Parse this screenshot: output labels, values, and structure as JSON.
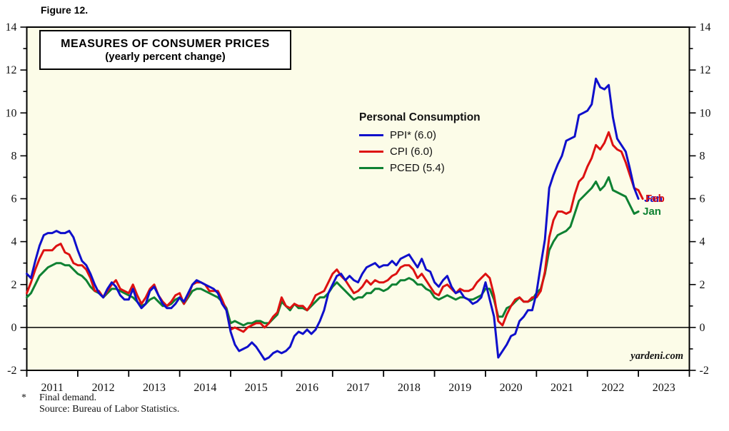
{
  "figure_label": "Figure 12.",
  "title": {
    "line1": "MEASURES OF CONSUMER PRICES",
    "line2": "(yearly percent change)"
  },
  "legend": {
    "title": "Personal Consumption",
    "items": [
      {
        "label": "PPI* (6.0)"
      },
      {
        "label": "CPI (6.0)"
      },
      {
        "label": "PCED (5.4)"
      }
    ]
  },
  "watermark": "yardeni.com",
  "footnote": {
    "star": "*",
    "line1": "Final demand.",
    "line2": "Source: Bureau of Labor Statistics."
  },
  "colors": {
    "plot_background": "#fcfce8",
    "axis": "#000000",
    "frame": "#000000"
  },
  "chart_data": {
    "type": "line",
    "title": "MEASURES OF CONSUMER PRICES (yearly percent change)",
    "xlabel": "",
    "ylabel": "yearly percent change",
    "ylim": [
      -2,
      14
    ],
    "y_major_ticks": [
      -2,
      0,
      2,
      4,
      6,
      8,
      10,
      12,
      14
    ],
    "y_minor_step": 1,
    "xlim": [
      2011,
      2024
    ],
    "x_year_labels": [
      "2011",
      "2012",
      "2013",
      "2014",
      "2015",
      "2016",
      "2017",
      "2018",
      "2019",
      "2020",
      "2021",
      "2022",
      "2023"
    ],
    "grid": false,
    "zero_line": true,
    "legend_position": "inside top-center",
    "x_start": 2011.0,
    "x_step_years": 0.0833333,
    "series": [
      {
        "name": "PPI* (6.0)",
        "color": "#0f0fcb",
        "end_label": "Jan",
        "end_value": 6.0,
        "values": [
          2.5,
          2.3,
          3.1,
          3.8,
          4.3,
          4.4,
          4.4,
          4.5,
          4.4,
          4.4,
          4.5,
          4.2,
          3.6,
          3.1,
          2.9,
          2.5,
          2.0,
          1.6,
          1.4,
          1.8,
          2.1,
          1.9,
          1.5,
          1.3,
          1.3,
          1.8,
          1.2,
          0.9,
          1.1,
          1.7,
          1.9,
          1.5,
          1.1,
          0.9,
          0.9,
          1.1,
          1.4,
          1.2,
          1.6,
          2.0,
          2.2,
          2.1,
          2.0,
          1.9,
          1.8,
          1.6,
          1.1,
          0.8,
          -0.2,
          -0.8,
          -1.1,
          -1.0,
          -0.9,
          -0.7,
          -0.9,
          -1.2,
          -1.5,
          -1.4,
          -1.2,
          -1.1,
          -1.2,
          -1.1,
          -0.9,
          -0.4,
          -0.2,
          -0.3,
          -0.1,
          -0.3,
          -0.1,
          0.3,
          0.8,
          1.6,
          2.0,
          2.4,
          2.5,
          2.2,
          2.4,
          2.2,
          2.1,
          2.5,
          2.8,
          2.9,
          3.0,
          2.8,
          2.9,
          2.9,
          3.1,
          2.9,
          3.2,
          3.3,
          3.4,
          3.1,
          2.8,
          3.2,
          2.7,
          2.6,
          2.1,
          1.9,
          2.2,
          2.4,
          1.9,
          1.6,
          1.7,
          1.4,
          1.3,
          1.1,
          1.2,
          1.4,
          2.1,
          1.3,
          0.5,
          -1.4,
          -1.1,
          -0.8,
          -0.4,
          -0.3,
          0.3,
          0.5,
          0.8,
          0.8,
          1.6,
          2.9,
          4.1,
          6.5,
          7.1,
          7.6,
          8.0,
          8.7,
          8.8,
          8.9,
          9.9,
          10.0,
          10.1,
          10.4,
          11.6,
          11.2,
          11.1,
          11.3,
          9.8,
          8.8,
          8.5,
          8.2,
          7.4,
          6.5,
          6.0
        ]
      },
      {
        "name": "CPI (6.0)",
        "color": "#dd1111",
        "end_label": "Feb",
        "end_value": 6.0,
        "values": [
          1.6,
          2.1,
          2.7,
          3.2,
          3.6,
          3.6,
          3.6,
          3.8,
          3.9,
          3.5,
          3.4,
          3.0,
          2.9,
          2.9,
          2.7,
          2.3,
          1.7,
          1.7,
          1.4,
          1.7,
          2.0,
          2.2,
          1.8,
          1.7,
          1.6,
          2.0,
          1.5,
          1.1,
          1.4,
          1.8,
          2.0,
          1.5,
          1.2,
          1.0,
          1.2,
          1.5,
          1.6,
          1.1,
          1.5,
          2.0,
          2.1,
          2.1,
          2.0,
          1.7,
          1.7,
          1.7,
          1.3,
          0.8,
          -0.1,
          0.0,
          -0.1,
          -0.2,
          0.0,
          0.1,
          0.2,
          0.2,
          0.0,
          0.2,
          0.5,
          0.7,
          1.4,
          1.0,
          0.9,
          1.1,
          1.0,
          1.0,
          0.8,
          1.1,
          1.5,
          1.6,
          1.7,
          2.1,
          2.5,
          2.7,
          2.4,
          2.2,
          1.9,
          1.6,
          1.7,
          1.9,
          2.2,
          2.0,
          2.2,
          2.1,
          2.1,
          2.2,
          2.4,
          2.5,
          2.8,
          2.9,
          2.9,
          2.7,
          2.3,
          2.5,
          2.2,
          1.9,
          1.6,
          1.5,
          1.9,
          2.0,
          1.8,
          1.6,
          1.8,
          1.7,
          1.7,
          1.8,
          2.1,
          2.3,
          2.5,
          2.3,
          1.5,
          0.3,
          0.1,
          0.6,
          1.0,
          1.3,
          1.4,
          1.2,
          1.2,
          1.4,
          1.4,
          1.7,
          2.6,
          4.2,
          5.0,
          5.4,
          5.4,
          5.3,
          5.4,
          6.2,
          6.8,
          7.0,
          7.5,
          7.9,
          8.5,
          8.3,
          8.6,
          9.1,
          8.5,
          8.3,
          8.2,
          7.7,
          7.1,
          6.5,
          6.4,
          6.0
        ]
      },
      {
        "name": "PCED (5.4)",
        "color": "#0e8132",
        "end_label": "Jan",
        "end_value": 5.4,
        "values": [
          1.4,
          1.6,
          2.0,
          2.4,
          2.6,
          2.8,
          2.9,
          3.0,
          3.0,
          2.9,
          2.9,
          2.7,
          2.5,
          2.4,
          2.2,
          1.9,
          1.7,
          1.6,
          1.4,
          1.6,
          1.8,
          1.8,
          1.7,
          1.6,
          1.5,
          1.4,
          1.2,
          1.0,
          1.1,
          1.3,
          1.4,
          1.2,
          1.0,
          1.0,
          1.1,
          1.3,
          1.4,
          1.1,
          1.4,
          1.7,
          1.8,
          1.8,
          1.7,
          1.6,
          1.5,
          1.4,
          1.2,
          0.9,
          0.2,
          0.3,
          0.2,
          0.1,
          0.2,
          0.2,
          0.3,
          0.3,
          0.2,
          0.2,
          0.4,
          0.6,
          1.2,
          1.0,
          0.8,
          1.1,
          0.9,
          0.9,
          0.8,
          1.0,
          1.2,
          1.4,
          1.4,
          1.6,
          1.9,
          2.1,
          1.9,
          1.7,
          1.5,
          1.3,
          1.4,
          1.4,
          1.6,
          1.6,
          1.8,
          1.8,
          1.7,
          1.8,
          2.0,
          2.0,
          2.2,
          2.2,
          2.3,
          2.2,
          2.0,
          2.0,
          1.8,
          1.7,
          1.4,
          1.3,
          1.4,
          1.5,
          1.4,
          1.3,
          1.4,
          1.4,
          1.3,
          1.3,
          1.4,
          1.5,
          1.8,
          1.8,
          1.3,
          0.5,
          0.5,
          0.9,
          1.0,
          1.2,
          1.4,
          1.2,
          1.2,
          1.3,
          1.6,
          1.8,
          2.5,
          3.6,
          4.0,
          4.3,
          4.4,
          4.5,
          4.7,
          5.3,
          5.9,
          6.1,
          6.3,
          6.5,
          6.8,
          6.4,
          6.6,
          7.0,
          6.4,
          6.3,
          6.2,
          6.1,
          5.7,
          5.3,
          5.4
        ]
      }
    ]
  }
}
